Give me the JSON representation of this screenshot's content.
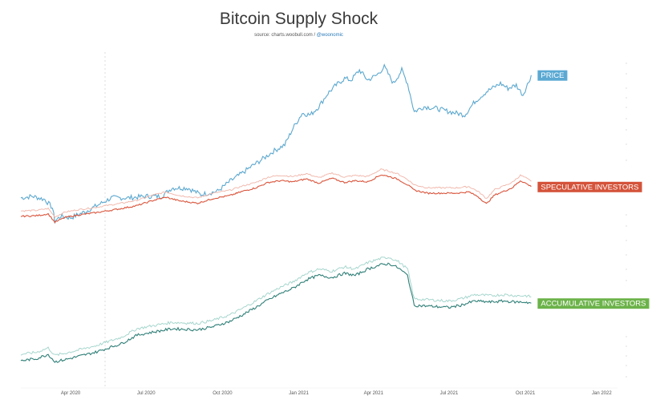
{
  "chart_data": {
    "type": "line",
    "title": "Bitcoin Supply Shock",
    "subtitle_source": "source: charts.woobull.com /",
    "subtitle_handle": "@woonomic",
    "x_ticks": [
      "Apr 2020",
      "Jul 2020",
      "Oct 2020",
      "Jan 2021",
      "Apr 2021",
      "Jul 2021",
      "Oct 2021",
      "Jan 2022"
    ],
    "x_range": [
      "2020-02-01",
      "2022-01-20"
    ],
    "grid": false,
    "legend": "direct labels on right",
    "colors": {
      "price": "#5ca8cf",
      "speculative": "#d9533a",
      "speculative_light": "#f0b4a8",
      "accumulative": "#2f7f77",
      "accumulative_light": "#9fd3c9",
      "price_label_bg": "#5ba9d3",
      "speculative_label_bg": "#d4533a",
      "accumulative_label_bg": "#6cb34a"
    },
    "series": [
      {
        "name": "PRICE",
        "axis": "top",
        "x": [
          "2020-02-01",
          "2020-02-15",
          "2020-03-01",
          "2020-03-10",
          "2020-03-13",
          "2020-03-20",
          "2020-04-01",
          "2020-04-20",
          "2020-05-05",
          "2020-05-20",
          "2020-06-10",
          "2020-07-01",
          "2020-07-20",
          "2020-08-01",
          "2020-08-20",
          "2020-09-05",
          "2020-09-25",
          "2020-10-10",
          "2020-10-25",
          "2020-11-05",
          "2020-11-20",
          "2020-12-01",
          "2020-12-15",
          "2020-12-25",
          "2021-01-05",
          "2021-01-15",
          "2021-01-25",
          "2021-02-05",
          "2021-02-15",
          "2021-02-25",
          "2021-03-05",
          "2021-03-15",
          "2021-03-25",
          "2021-04-05",
          "2021-04-14",
          "2021-04-25",
          "2021-05-05",
          "2021-05-12",
          "2021-05-20",
          "2021-06-01",
          "2021-06-15",
          "2021-07-01",
          "2021-07-20",
          "2021-08-01",
          "2021-08-15",
          "2021-09-01",
          "2021-09-10",
          "2021-09-20",
          "2021-09-28",
          "2021-10-05",
          "2021-10-08"
        ],
        "y": [
          0.16,
          0.17,
          0.15,
          0.1,
          0.02,
          0.05,
          0.04,
          0.08,
          0.12,
          0.16,
          0.16,
          0.17,
          0.17,
          0.22,
          0.22,
          0.18,
          0.2,
          0.26,
          0.31,
          0.35,
          0.4,
          0.44,
          0.48,
          0.58,
          0.67,
          0.66,
          0.71,
          0.79,
          0.84,
          0.88,
          0.87,
          0.93,
          0.87,
          0.9,
          0.95,
          0.85,
          0.93,
          0.85,
          0.68,
          0.71,
          0.7,
          0.68,
          0.66,
          0.74,
          0.8,
          0.85,
          0.82,
          0.84,
          0.78,
          0.86,
          0.9
        ]
      },
      {
        "name": "SPECULATIVE INVESTORS",
        "axis": "middle",
        "x": [
          "2020-02-01",
          "2020-02-20",
          "2020-03-05",
          "2020-03-13",
          "2020-03-25",
          "2020-04-10",
          "2020-05-01",
          "2020-06-01",
          "2020-06-20",
          "2020-07-10",
          "2020-07-25",
          "2020-08-10",
          "2020-09-01",
          "2020-09-20",
          "2020-10-10",
          "2020-10-25",
          "2020-11-10",
          "2020-11-25",
          "2020-12-10",
          "2020-12-25",
          "2021-01-10",
          "2021-01-25",
          "2021-02-10",
          "2021-02-25",
          "2021-03-10",
          "2021-03-25",
          "2021-04-10",
          "2021-04-20",
          "2021-05-01",
          "2021-05-12",
          "2021-05-20",
          "2021-06-05",
          "2021-06-20",
          "2021-07-10",
          "2021-07-25",
          "2021-08-05",
          "2021-08-15",
          "2021-08-25",
          "2021-09-05",
          "2021-09-15",
          "2021-09-25",
          "2021-10-01",
          "2021-10-08"
        ],
        "y": [
          0.3,
          0.31,
          0.34,
          0.2,
          0.28,
          0.32,
          0.36,
          0.43,
          0.48,
          0.57,
          0.62,
          0.56,
          0.52,
          0.6,
          0.65,
          0.72,
          0.78,
          0.87,
          0.9,
          0.88,
          0.93,
          0.86,
          0.94,
          0.87,
          0.9,
          0.88,
          1.0,
          0.97,
          0.92,
          0.83,
          0.74,
          0.69,
          0.69,
          0.69,
          0.71,
          0.63,
          0.51,
          0.66,
          0.72,
          0.78,
          0.9,
          0.86,
          0.8
        ],
        "companion_light_offset": 0.09
      },
      {
        "name": "ACCUMULATIVE INVESTORS",
        "axis": "bottom",
        "x": [
          "2020-02-01",
          "2020-02-20",
          "2020-03-05",
          "2020-03-13",
          "2020-03-25",
          "2020-04-10",
          "2020-05-01",
          "2020-06-01",
          "2020-06-20",
          "2020-07-10",
          "2020-08-01",
          "2020-09-01",
          "2020-09-20",
          "2020-10-10",
          "2020-10-25",
          "2020-11-10",
          "2020-11-25",
          "2020-12-10",
          "2020-12-25",
          "2021-01-10",
          "2021-01-25",
          "2021-02-10",
          "2021-02-25",
          "2021-03-10",
          "2021-03-25",
          "2021-04-10",
          "2021-04-20",
          "2021-05-01",
          "2021-05-12",
          "2021-05-20",
          "2021-06-10",
          "2021-07-01",
          "2021-07-15",
          "2021-08-01",
          "2021-08-20",
          "2021-09-05",
          "2021-09-20",
          "2021-10-01",
          "2021-10-08"
        ],
        "y": [
          0.06,
          0.08,
          0.12,
          0.05,
          0.07,
          0.1,
          0.14,
          0.22,
          0.3,
          0.33,
          0.36,
          0.35,
          0.38,
          0.43,
          0.49,
          0.56,
          0.63,
          0.69,
          0.74,
          0.82,
          0.86,
          0.84,
          0.88,
          0.86,
          0.92,
          0.96,
          0.97,
          0.93,
          0.86,
          0.58,
          0.57,
          0.56,
          0.58,
          0.62,
          0.61,
          0.62,
          0.61,
          0.61,
          0.6
        ],
        "companion_light_offset": 0.06
      }
    ]
  }
}
